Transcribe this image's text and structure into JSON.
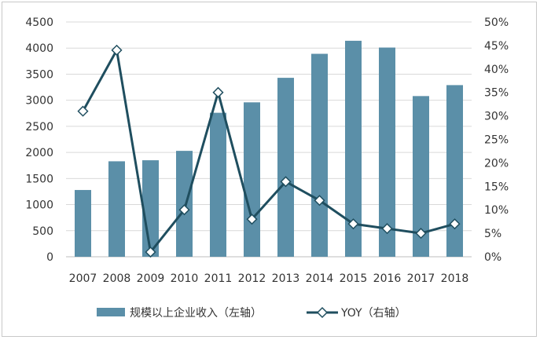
{
  "chart_data": {
    "type": "bar",
    "categories": [
      "2007",
      "2008",
      "2009",
      "2010",
      "2011",
      "2012",
      "2013",
      "2014",
      "2015",
      "2016",
      "2017",
      "2018"
    ],
    "series": [
      {
        "name": "规模以上企业收入（左轴）",
        "kind": "bar",
        "axis": "left",
        "color": "#5b8fa8",
        "values": [
          1280,
          1830,
          1850,
          2030,
          2760,
          2960,
          3430,
          3890,
          4140,
          4010,
          3080,
          3290
        ]
      },
      {
        "name": "YOY（右轴）",
        "kind": "line",
        "axis": "right",
        "color": "#1f4e5f",
        "marker": "diamond-open",
        "values": [
          0.31,
          0.44,
          0.01,
          0.1,
          0.35,
          0.08,
          0.16,
          0.12,
          0.07,
          0.06,
          0.05,
          0.07
        ]
      }
    ],
    "left_axis": {
      "ylim": [
        0,
        4500
      ],
      "ticks": [
        "0",
        "500",
        "1000",
        "1500",
        "2000",
        "2500",
        "3000",
        "3500",
        "4000",
        "4500"
      ]
    },
    "right_axis": {
      "ylim": [
        0,
        0.5
      ],
      "ticks": [
        "0%",
        "5%",
        "10%",
        "15%",
        "20%",
        "25%",
        "30%",
        "35%",
        "40%",
        "45%",
        "50%"
      ]
    },
    "grid": "horizontal",
    "legend_position": "bottom"
  }
}
